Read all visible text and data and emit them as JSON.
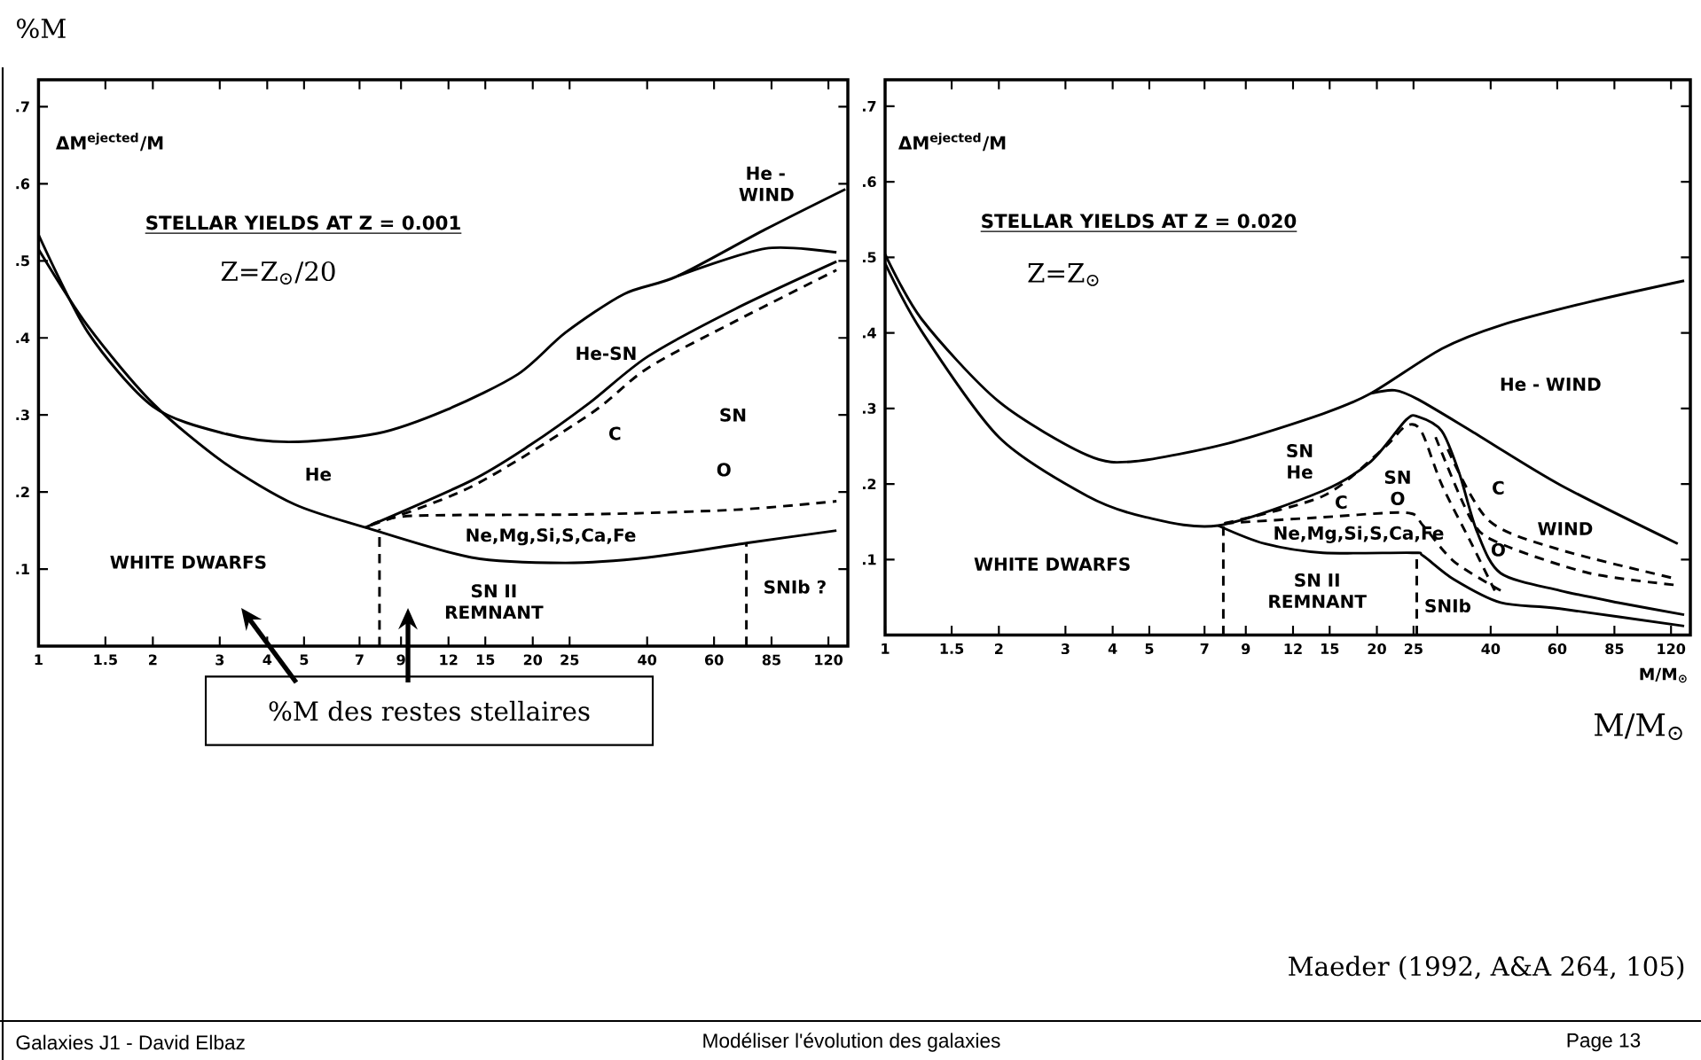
{
  "chart_data": [
    {
      "type": "line",
      "title": "STELLAR YIELDS AT Z = 0.001",
      "subtitle": "Z=Z$_{⊙}$/20",
      "log": "x",
      "xlim": [
        1,
        135
      ],
      "ylim": [
        0,
        0.735
      ],
      "xticks": [
        1,
        1.5,
        2,
        3,
        4,
        5,
        7,
        9,
        12,
        15,
        20,
        25,
        40,
        60,
        85,
        120
      ],
      "yticks": [
        {
          "value": 0.1,
          "label": ".1"
        },
        {
          "value": 0.2,
          "label": ".2"
        },
        {
          "value": 0.3,
          "label": ".3"
        },
        {
          "value": 0.4,
          "label": ".4"
        },
        {
          "value": 0.5,
          "label": ".5"
        },
        {
          "value": 0.6,
          "label": ".6"
        },
        {
          "value": 0.7,
          "label": ".7"
        }
      ],
      "series": [
        {
          "color": "#000000",
          "line_style": "solid",
          "x": [
            1,
            1.35,
            2.0,
            3.08,
            4.56,
            7.8,
            11.9,
            18.3,
            24.4,
            34.8,
            48,
            82,
            133
          ],
          "values": [
            0.534,
            0.407,
            0.311,
            0.276,
            0.265,
            0.276,
            0.307,
            0.353,
            0.407,
            0.457,
            0.48,
            0.541,
            0.593
          ]
        },
        {
          "color": "#000000",
          "line_style": "solid",
          "x": [
            1,
            1.35,
            2.0,
            3.08,
            4.72,
            7.25,
            13.8,
            24.4,
            40.2,
            73.6,
            126
          ],
          "values": [
            0.515,
            0.415,
            0.315,
            0.238,
            0.184,
            0.154,
            0.115,
            0.108,
            0.115,
            0.134,
            0.15
          ]
        },
        {
          "color": "#000000",
          "line_style": "solid",
          "x": [
            7.25,
            13.8,
            19.7,
            28.1,
            40.2,
            68.5,
            126
          ],
          "values": [
            0.154,
            0.215,
            0.261,
            0.315,
            0.376,
            0.438,
            0.499
          ]
        },
        {
          "color": "#000000",
          "line_style": "solid",
          "x": [
            48,
            82,
            126
          ],
          "values": [
            0.48,
            0.516,
            0.511
          ]
        },
        {
          "color": "#000000",
          "line_style": "dashed",
          "x": [
            7.5,
            13.8,
            28.1,
            40.2,
            68.5,
            126
          ],
          "values": [
            0.157,
            0.207,
            0.3,
            0.361,
            0.422,
            0.488
          ]
        },
        {
          "color": "#000000",
          "line_style": "dashed",
          "x": [
            7.5,
            9.6,
            28.1,
            68.5,
            126
          ],
          "values": [
            0.157,
            0.169,
            0.171,
            0.177,
            0.188
          ]
        },
        {
          "color": "#000000",
          "line_style": "dashed",
          "x": [
            7.9,
            7.9
          ],
          "values": [
            0,
            0.152
          ]
        },
        {
          "color": "#000000",
          "line_style": "dashed",
          "x": [
            73,
            73
          ],
          "values": [
            0,
            0.134
          ]
        }
      ],
      "annotations": [
        "He",
        "He-SN",
        "C",
        "SN",
        "O",
        "He - WIND",
        "Ne,Mg,Si,S,Ca,Fe",
        "WHITE DWARFS",
        "SN II REMNANT",
        "SNIb ?",
        "ΔM$^{ejected}$/M",
        "%M",
        "%M des restes stellaires",
        "Maeder (1992, A&A 264, 105)",
        "Galaxies J1 - David Elbaz",
        "Modéliser l'évolution des galaxies",
        "Page 13"
      ]
    },
    {
      "type": "line",
      "title": "STELLAR YIELDS AT Z = 0.020",
      "subtitle": "Z=Z$_{⊙}$",
      "xlabel": "M/M$_{⊙}$",
      "log": "x",
      "xlim": [
        1,
        135
      ],
      "ylim": [
        0,
        0.735
      ],
      "xticks": [
        1,
        1.5,
        2,
        3,
        4,
        5,
        7,
        9,
        12,
        15,
        20,
        25,
        40,
        60,
        85,
        120
      ],
      "yticks": [
        {
          "value": 0.1,
          "label": ".1"
        },
        {
          "value": 0.2,
          "label": ".2"
        },
        {
          "value": 0.3,
          "label": ".3"
        },
        {
          "value": 0.4,
          "label": ".4"
        },
        {
          "value": 0.5,
          "label": ".5"
        },
        {
          "value": 0.6,
          "label": ".6"
        },
        {
          "value": 0.7,
          "label": ".7"
        }
      ],
      "series": [
        {
          "color": "#000000",
          "line_style": "solid",
          "x": [
            1,
            1.25,
            2.0,
            3.43,
            4.58,
            8.1,
            14.4,
            19.3,
            29.7,
            42.5,
            73,
            130
          ],
          "values": [
            0.504,
            0.418,
            0.309,
            0.238,
            0.23,
            0.254,
            0.293,
            0.32,
            0.379,
            0.41,
            0.441,
            0.469
          ]
        },
        {
          "color": "#000000",
          "line_style": "solid",
          "x": [
            19.3,
            22.3,
            25.7,
            35.6,
            61,
            125
          ],
          "values": [
            0.32,
            0.324,
            0.312,
            0.27,
            0.199,
            0.121
          ]
        },
        {
          "color": "#000000",
          "line_style": "solid",
          "x": [
            1,
            1.25,
            2.0,
            3.43,
            4.9,
            7.6,
            14.4,
            19.3,
            23.9,
            25.7,
            29.7,
            33,
            36.8,
            42.5,
            61,
            87,
            130
          ],
          "values": [
            0.492,
            0.402,
            0.262,
            0.184,
            0.156,
            0.145,
            0.191,
            0.23,
            0.285,
            0.289,
            0.27,
            0.215,
            0.137,
            0.082,
            0.059,
            0.043,
            0.027
          ]
        },
        {
          "color": "#000000",
          "line_style": "solid",
          "x": [
            7.6,
            10.1,
            14.4,
            24.8,
            26.5,
            31.9,
            42.5,
            61,
            130
          ],
          "values": [
            0.145,
            0.121,
            0.109,
            0.109,
            0.105,
            0.074,
            0.043,
            0.035,
            0.012
          ]
        },
        {
          "color": "#000000",
          "line_style": "dashed",
          "x": [
            7.9,
            14.4,
            20.7,
            23.9,
            26.2,
            29.7,
            35.6,
            41
          ],
          "values": [
            0.148,
            0.184,
            0.246,
            0.277,
            0.27,
            0.199,
            0.121,
            0.059
          ]
        },
        {
          "color": "#000000",
          "line_style": "dashed",
          "x": [
            7.9,
            14.4,
            23.9,
            26.5,
            31.9,
            42.5
          ],
          "values": [
            0.148,
            0.156,
            0.162,
            0.145,
            0.098,
            0.059
          ]
        },
        {
          "color": "#000000",
          "line_style": "dashed",
          "x": [
            28.6,
            35.6,
            42.5,
            73,
            125
          ],
          "values": [
            0.262,
            0.152,
            0.121,
            0.082,
            0.066
          ]
        },
        {
          "color": "#000000",
          "line_style": "dashed",
          "x": [
            30.8,
            39.5,
            61,
            125
          ],
          "values": [
            0.246,
            0.152,
            0.113,
            0.074
          ]
        },
        {
          "color": "#000000",
          "line_style": "dashed",
          "x": [
            7.85,
            7.85
          ],
          "values": [
            0,
            0.145
          ]
        },
        {
          "color": "#000000",
          "line_style": "dashed",
          "x": [
            25.5,
            25.5
          ],
          "values": [
            0,
            0.108
          ]
        }
      ],
      "annotations": [
        "SN He",
        "C",
        "SN O",
        "He - WIND",
        "C",
        "WIND",
        "O",
        "Ne,Mg,Si,S,Ca,Fe",
        "WHITE DWARFS",
        "SN II REMNANT",
        "SNIb",
        "ΔM$^{ejected}$/M",
        "M/M$_{⊙}$"
      ]
    }
  ]
}
